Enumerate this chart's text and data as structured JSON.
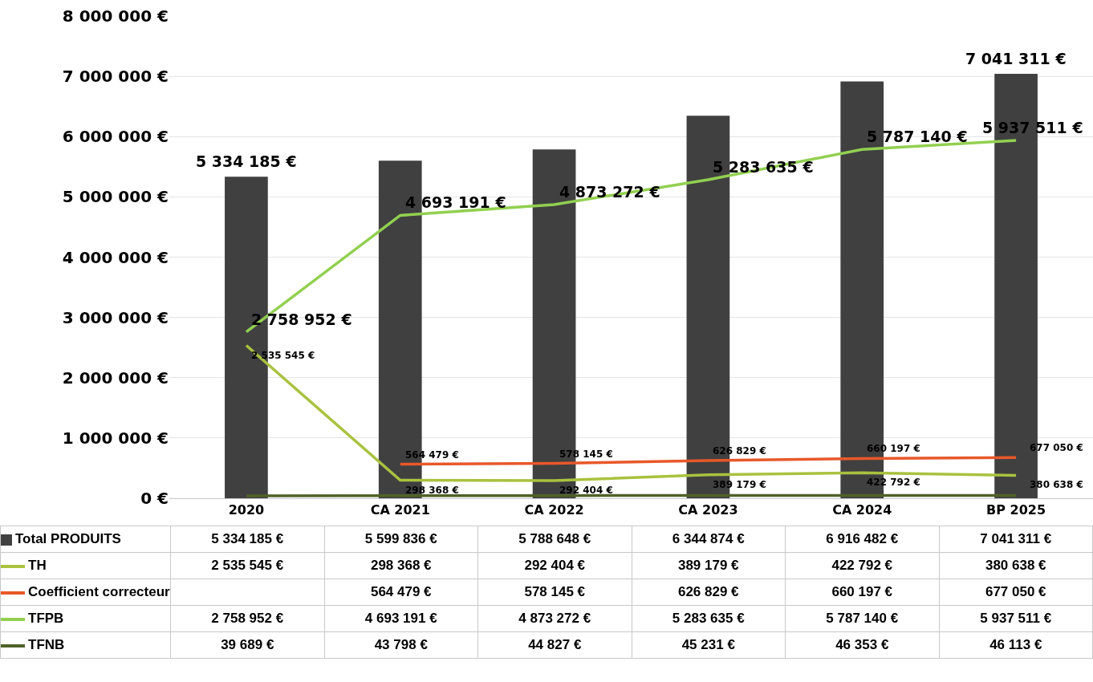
{
  "chart_data": {
    "type": "bar",
    "categories": [
      "2020",
      "CA 2021",
      "CA 2022",
      "CA 2023",
      "CA 2024",
      "BP 2025"
    ],
    "series": [
      {
        "name": "Total PRODUITS",
        "color": "#404040",
        "values": [
          5334185,
          5599836,
          5788648,
          6344874,
          6916482,
          7041311
        ],
        "value_labels": [
          "5 334 185 €",
          "5 599 836 €",
          "5 788 648 €",
          "6 344 874 €",
          "6 916 482 €",
          "7 041 311 €"
        ]
      },
      {
        "name": "TH",
        "type": "line",
        "color": "#a9c23f",
        "values": [
          2535545,
          298368,
          292404,
          389179,
          422792,
          380638
        ],
        "value_labels": [
          "2 535 545 €",
          "298 368 €",
          "292 404 €",
          "389 179 €",
          "422 792 €",
          "380 638 €"
        ]
      },
      {
        "name": "Coefficient correcteur",
        "type": "line",
        "color": "#e8582a",
        "values": [
          null,
          564479,
          578145,
          626829,
          660197,
          677050
        ],
        "value_labels": [
          null,
          "564 479 €",
          "578 145 €",
          "626 829 €",
          "660 197 €",
          "677 050 €"
        ]
      },
      {
        "name": "TFPB",
        "type": "line",
        "color": "#92d050",
        "values": [
          2758952,
          4693191,
          4873272,
          5283635,
          5787140,
          5937511
        ],
        "value_labels": [
          "2 758 952 €",
          "4 693 191 €",
          "4 873 272 €",
          "5 283 635 €",
          "5 787 140 €",
          "5 937 511 €"
        ]
      },
      {
        "name": "TFNB",
        "type": "line",
        "color": "#4f6228",
        "values": [
          39689,
          43798,
          44827,
          45231,
          46353,
          46113
        ],
        "value_labels": [
          "39 689 €",
          "43 798 €",
          "44 827 €",
          "45 231 €",
          "46 353 €",
          "46 113 €"
        ]
      }
    ],
    "ylim": [
      0,
      8000000
    ],
    "yticks": [
      {
        "value": 0,
        "label": "0 €"
      },
      {
        "value": 1000000,
        "label": "1 000 000 €"
      },
      {
        "value": 2000000,
        "label": "2 000 000 €"
      },
      {
        "value": 3000000,
        "label": "3 000 000 €"
      },
      {
        "value": 4000000,
        "label": "4 000 000 €"
      },
      {
        "value": 5000000,
        "label": "5 000 000 €"
      },
      {
        "value": 6000000,
        "label": "6 000 000 €"
      },
      {
        "value": 7000000,
        "label": "7 000 000 €"
      },
      {
        "value": 8000000,
        "label": "8 000 000 €"
      }
    ],
    "grid": "y",
    "legend": "bottom",
    "marker": "none",
    "data_labels": true,
    "annotations": [
      {
        "text": "5 334 185 €",
        "x": "2020",
        "y": 5334185
      },
      {
        "text": "7 041 311 €",
        "x": "BP 2025",
        "y": 7041311
      },
      {
        "text": "2 758 952 €",
        "x": "2020",
        "y": 2758952
      },
      {
        "text": "4 693 191 €",
        "x": "CA 2021",
        "y": 4693191
      },
      {
        "text": "4 873 272 €",
        "x": "CA 2022",
        "y": 4873272
      },
      {
        "text": "5 283 635 €",
        "x": "CA 2023",
        "y": 5283635
      },
      {
        "text": "5 787 140 €",
        "x": "CA 2024",
        "y": 5787140
      },
      {
        "text": "5 937 511 €",
        "x": "BP 2025",
        "y": 5937511
      },
      {
        "text": "2 535 545 €",
        "x": "2020",
        "y": 2535545
      },
      {
        "text": "298 368 €",
        "x": "CA 2021",
        "y": 298368
      },
      {
        "text": "292 404 €",
        "x": "CA 2022",
        "y": 292404
      },
      {
        "text": "389 179 €",
        "x": "CA 2023",
        "y": 389179
      },
      {
        "text": "422 792 €",
        "x": "CA 2024",
        "y": 422792
      },
      {
        "text": "380 638 €",
        "x": "BP 2025",
        "y": 380638
      },
      {
        "text": "564 479 €",
        "x": "CA 2021",
        "y": 564479
      },
      {
        "text": "578 145 €",
        "x": "CA 2022",
        "y": 578145
      },
      {
        "text": "626 829 €",
        "x": "CA 2023",
        "y": 626829
      },
      {
        "text": "660 197 €",
        "x": "CA 2024",
        "y": 660197
      },
      {
        "text": "677 050 €",
        "x": "BP 2025",
        "y": 677050
      }
    ]
  }
}
